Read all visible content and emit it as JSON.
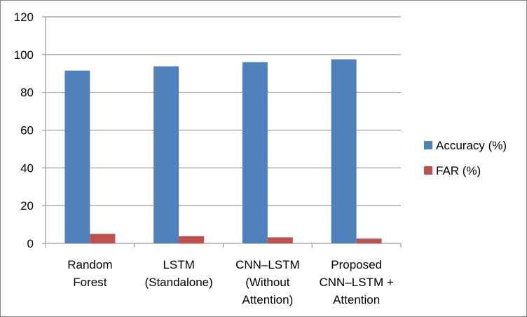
{
  "chart_data": {
    "type": "bar",
    "categories": [
      [
        "Random",
        "Forest"
      ],
      [
        "LSTM",
        "(Standalone)"
      ],
      [
        "CNN–LSTM",
        "(Without",
        "Attention)"
      ],
      [
        "Proposed",
        "CNN–LSTM +",
        "Attention"
      ]
    ],
    "series": [
      {
        "name": "Accuracy (%)",
        "color": "#4F81BD",
        "values": [
          91.5,
          93.8,
          96.0,
          97.5
        ]
      },
      {
        "name": "FAR (%)",
        "color": "#C0504D",
        "values": [
          5.0,
          3.8,
          3.2,
          2.5
        ]
      }
    ],
    "ylim": [
      0,
      120
    ],
    "yticks": [
      "0",
      "20",
      "40",
      "60",
      "80",
      "100",
      "120"
    ],
    "grid": true,
    "legend": "right",
    "title": "",
    "xlabel": "",
    "ylabel": ""
  }
}
